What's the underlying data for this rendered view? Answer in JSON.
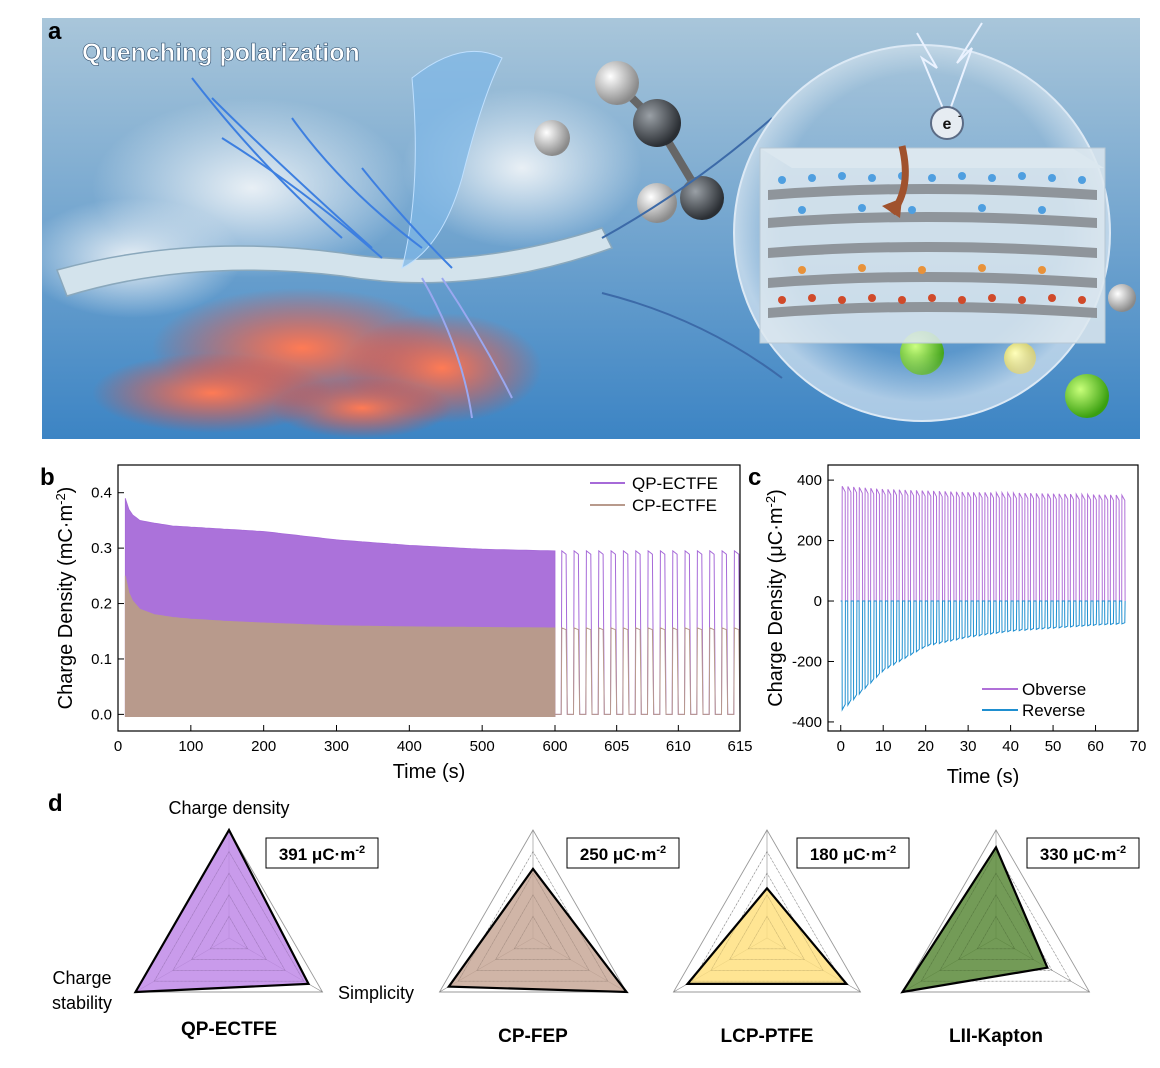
{
  "panels": {
    "a": {
      "letter": "a",
      "title": "Quenching polarization",
      "electron_label": "e",
      "electron_superscript": "-",
      "colors": {
        "sky_top": "#9fc0d8",
        "sky_bottom": "#3f86c4",
        "film": "#c9dde8",
        "flame": "#ff5a3c",
        "lightning": "#3d7fe0",
        "layer_blue": "#4f9fe0",
        "layer_orange": "#e8923a",
        "layer_red": "#d04a2a",
        "green_ball": "#6ad82a",
        "yellow_ball": "#d8d82a"
      }
    },
    "b": {
      "letter": "b"
    },
    "c": {
      "letter": "c"
    },
    "d": {
      "letter": "d"
    }
  },
  "chart_data": [
    {
      "id": "b",
      "type": "line",
      "xlabel": "Time (s)",
      "ylabel_main": "Charge Density (mC·m",
      "ylabel_sup": "-2",
      "ylabel_close": ")",
      "xlim": [
        0,
        615
      ],
      "ylim": [
        -0.03,
        0.45
      ],
      "x_axis_break_at": 600,
      "x_ticks_left": [
        0,
        100,
        200,
        300,
        400,
        500,
        600
      ],
      "x_ticks_right": [
        605,
        610,
        615
      ],
      "y_ticks": [
        0.0,
        0.1,
        0.2,
        0.3,
        0.4
      ],
      "y_tick_labels": [
        "0.0",
        "0.1",
        "0.2",
        "0.3",
        "0.4"
      ],
      "legend_position": "top-right",
      "series": [
        {
          "name": "QP-ECTFE",
          "color": "#a66ad8",
          "envelope_x": [
            10,
            15,
            20,
            30,
            50,
            75,
            100,
            150,
            200,
            300,
            400,
            500,
            600
          ],
          "envelope_max": [
            0.39,
            0.37,
            0.36,
            0.35,
            0.345,
            0.34,
            0.338,
            0.334,
            0.33,
            0.315,
            0.305,
            0.298,
            0.295
          ],
          "envelope_min": 0.0,
          "pulse_peak_after_break": 0.295
        },
        {
          "name": "CP-ECTFE",
          "color": "#b89a8c",
          "envelope_x": [
            10,
            15,
            20,
            30,
            50,
            75,
            100,
            150,
            200,
            300,
            400,
            500,
            600
          ],
          "envelope_max": [
            0.25,
            0.22,
            0.205,
            0.19,
            0.18,
            0.175,
            0.172,
            0.168,
            0.165,
            0.16,
            0.158,
            0.157,
            0.156
          ],
          "envelope_min": 0.0,
          "pulse_peak_after_break": 0.156
        }
      ]
    },
    {
      "id": "c",
      "type": "line",
      "xlabel": "Time (s)",
      "ylabel_main": "Charge Density (μC·m",
      "ylabel_sup": "-2",
      "ylabel_close": ")",
      "xlim": [
        -3,
        70
      ],
      "ylim": [
        -430,
        450
      ],
      "x_ticks": [
        0,
        10,
        20,
        30,
        40,
        50,
        60,
        70
      ],
      "y_ticks": [
        -400,
        -200,
        0,
        200,
        400
      ],
      "legend_position": "bottom-right",
      "series": [
        {
          "name": "Obverse",
          "color": "#b070d8",
          "x": [
            0.5,
            10,
            20,
            30,
            40,
            50,
            60,
            67
          ],
          "y": [
            380,
            370,
            365,
            360,
            358,
            355,
            352,
            350
          ],
          "pulses": 50
        },
        {
          "name": "Reverse",
          "color": "#1f8fd0",
          "x": [
            0.5,
            10,
            20,
            30,
            40,
            50,
            60,
            67
          ],
          "y": [
            -360,
            -230,
            -150,
            -120,
            -100,
            -90,
            -80,
            -75
          ],
          "pulses": 50
        }
      ]
    },
    {
      "id": "d",
      "type": "radar",
      "axes": [
        "Charge density",
        "Charge stability",
        "Simplicity"
      ],
      "axis_label_top": "Charge density",
      "axis_label_left_line1": "Charge",
      "axis_label_left_line2": "stability",
      "axis_label_right": "Simplicity",
      "unit_main": "μC·m",
      "unit_sup": "-2",
      "materials": [
        {
          "name": "QP-ECTFE",
          "charge_value": "391",
          "color": "#c08ae8",
          "values": [
            1.0,
            1.0,
            0.85
          ]
        },
        {
          "name": "CP-FEP",
          "charge_value": "250",
          "color": "#c8a898",
          "values": [
            0.64,
            0.9,
            1.0
          ]
        },
        {
          "name": "LCP-PTFE",
          "charge_value": "180",
          "color": "#ffe080",
          "values": [
            0.46,
            0.85,
            0.85
          ]
        },
        {
          "name": "LII-Kapton",
          "charge_value": "330",
          "color": "#5a8a3a",
          "values": [
            0.84,
            1.0,
            0.55
          ]
        }
      ]
    }
  ]
}
